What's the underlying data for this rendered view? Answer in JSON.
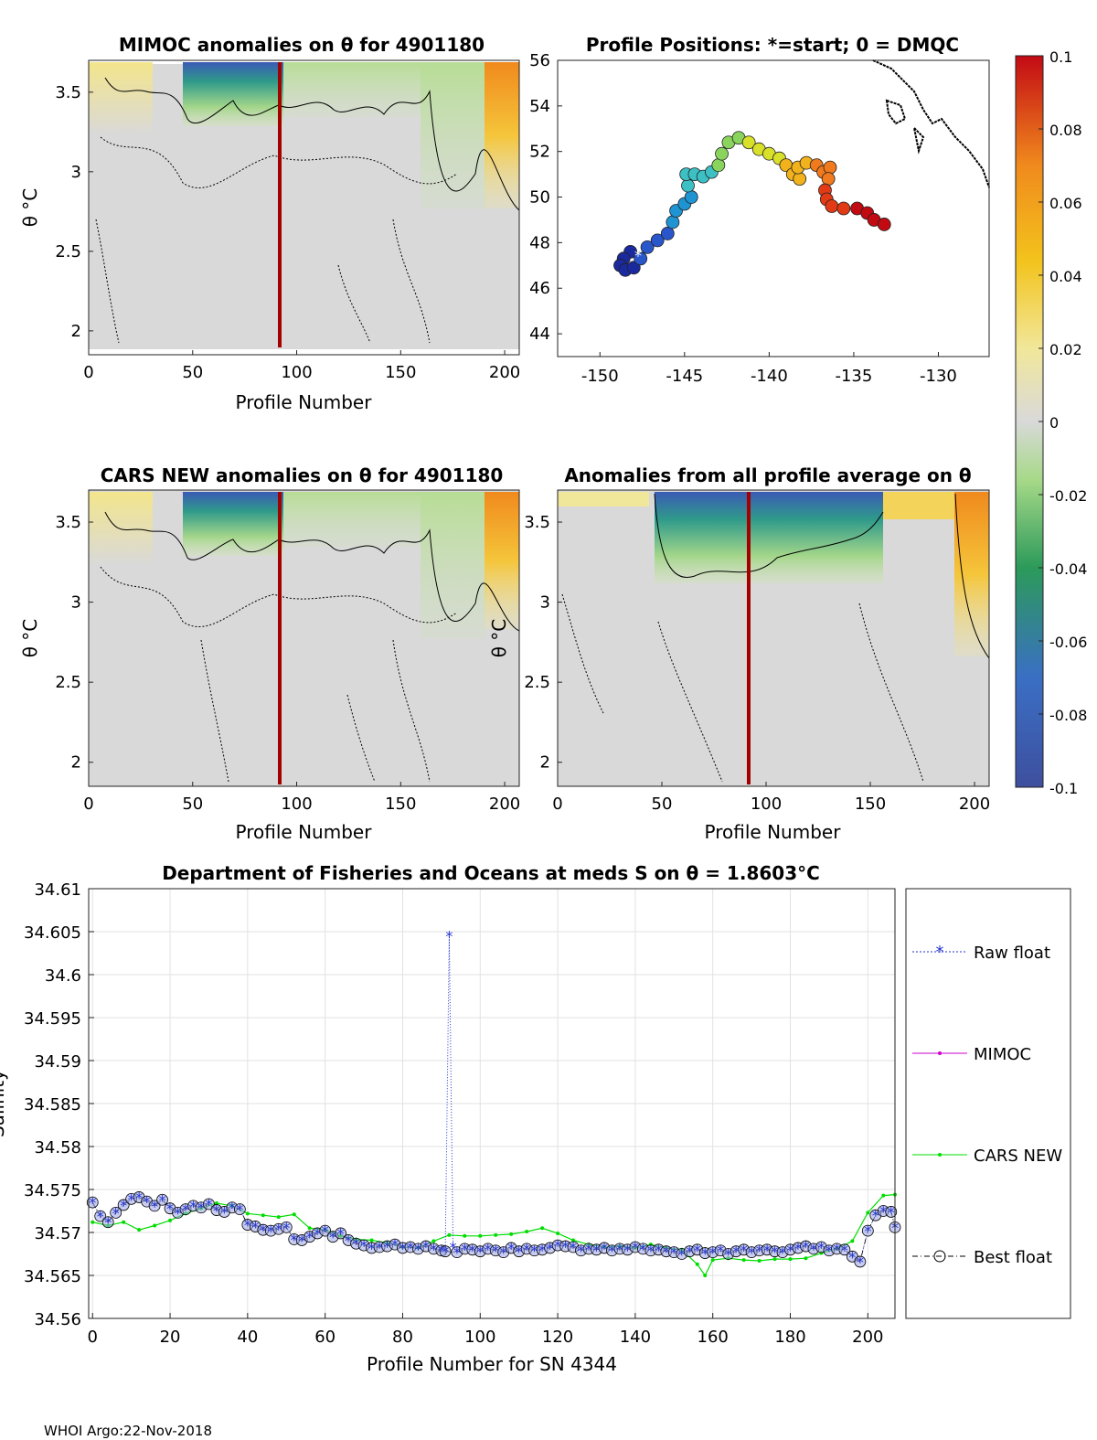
{
  "footer": "WHOI Argo:22-Nov-2018",
  "panels": {
    "mimoc": {
      "title": "MIMOC anomalies on θ  for 4901180",
      "xlabel": "Profile Number",
      "ylabel": "θ °C",
      "xlim": [
        0,
        207
      ],
      "ylim": [
        1.85,
        3.7
      ],
      "xticks": [
        "0",
        "50",
        "100",
        "150",
        "200"
      ],
      "yticks": [
        "2",
        "2.5",
        "3",
        "3.5"
      ]
    },
    "positions": {
      "title": "Profile Positions: *=start; 0 = DMQC",
      "xlim": [
        -152.5,
        -127
      ],
      "ylim": [
        43,
        56
      ],
      "xticks": [
        "-150",
        "-145",
        "-140",
        "-135",
        "-130"
      ],
      "yticks": [
        "44",
        "46",
        "48",
        "50",
        "52",
        "54",
        "56"
      ],
      "track": [
        [
          -148.2,
          47.6
        ],
        [
          -148.6,
          47.3
        ],
        [
          -148.8,
          47.0
        ],
        [
          -148.5,
          46.8
        ],
        [
          -148.0,
          46.9
        ],
        [
          -147.6,
          47.3
        ],
        [
          -147.2,
          47.8
        ],
        [
          -146.6,
          48.1
        ],
        [
          -146.0,
          48.4
        ],
        [
          -145.7,
          48.9
        ],
        [
          -145.5,
          49.4
        ],
        [
          -145.0,
          49.7
        ],
        [
          -144.6,
          50.0
        ],
        [
          -144.8,
          50.5
        ],
        [
          -144.9,
          51.0
        ],
        [
          -144.4,
          51.0
        ],
        [
          -143.9,
          50.9
        ],
        [
          -143.4,
          51.1
        ],
        [
          -143.0,
          51.4
        ],
        [
          -142.8,
          51.9
        ],
        [
          -142.4,
          52.4
        ],
        [
          -141.8,
          52.6
        ],
        [
          -141.2,
          52.4
        ],
        [
          -140.6,
          52.1
        ],
        [
          -140.0,
          51.9
        ],
        [
          -139.4,
          51.7
        ],
        [
          -139.0,
          51.4
        ],
        [
          -138.6,
          51.0
        ],
        [
          -138.2,
          50.8
        ],
        [
          -138.3,
          51.3
        ],
        [
          -137.8,
          51.5
        ],
        [
          -137.2,
          51.4
        ],
        [
          -136.8,
          51.1
        ],
        [
          -136.4,
          51.3
        ],
        [
          -136.5,
          50.8
        ],
        [
          -136.7,
          50.3
        ],
        [
          -136.6,
          49.9
        ],
        [
          -136.3,
          49.6
        ],
        [
          -135.6,
          49.5
        ],
        [
          -134.8,
          49.5
        ],
        [
          -134.2,
          49.3
        ],
        [
          -133.8,
          49.0
        ],
        [
          -133.2,
          48.8
        ]
      ]
    },
    "cars": {
      "title": "CARS NEW anomalies on θ for 4901180",
      "xlabel": "Profile Number",
      "ylabel": "θ °C",
      "xlim": [
        0,
        207
      ],
      "ylim": [
        1.85,
        3.7
      ],
      "xticks": [
        "0",
        "50",
        "100",
        "150",
        "200"
      ],
      "yticks": [
        "2",
        "2.5",
        "3",
        "3.5"
      ]
    },
    "avg": {
      "title": "Anomalies from all profile average on θ",
      "xlabel": "Profile Number",
      "ylabel": "θ °C",
      "xlim": [
        0,
        207
      ],
      "ylim": [
        1.85,
        3.7
      ],
      "xticks": [
        "0",
        "50",
        "100",
        "150",
        "200"
      ],
      "yticks": [
        "2",
        "2.5",
        "3",
        "3.5"
      ]
    }
  },
  "colorbar": {
    "min": -0.1,
    "max": 0.1,
    "ticks": [
      "0.1",
      "0.08",
      "0.06",
      "0.04",
      "0.02",
      "0",
      "-0.02",
      "-0.04",
      "-0.06",
      "-0.08",
      "-0.1"
    ]
  },
  "chart_data": {
    "type": "line",
    "title": "Department of Fisheries and Oceans at meds S on θ = 1.8603°C",
    "xlabel": "Profile Number for SN 4344",
    "ylabel": "Salinity",
    "xlim": [
      -1,
      207
    ],
    "ylim": [
      34.56,
      34.61
    ],
    "xticks": [
      "0",
      "20",
      "40",
      "60",
      "80",
      "100",
      "120",
      "140",
      "160",
      "180",
      "200"
    ],
    "yticks": [
      "34.56",
      "34.565",
      "34.57",
      "34.575",
      "34.58",
      "34.585",
      "34.59",
      "34.595",
      "34.6",
      "34.605",
      "34.61"
    ],
    "legend": [
      "Raw float",
      "MIMOC",
      "CARS NEW",
      "Best float"
    ],
    "series": [
      {
        "name": "Raw float",
        "x": [
          0,
          2,
          4,
          6,
          8,
          10,
          12,
          14,
          16,
          18,
          20,
          22,
          24,
          26,
          28,
          30,
          32,
          34,
          36,
          38,
          40,
          42,
          44,
          46,
          48,
          50,
          52,
          54,
          56,
          58,
          60,
          62,
          64,
          66,
          68,
          70,
          72,
          74,
          76,
          78,
          80,
          82,
          84,
          86,
          88,
          90,
          91,
          92,
          93,
          94,
          96,
          98,
          100,
          102,
          104,
          106,
          108,
          110,
          112,
          114,
          116,
          118,
          120,
          122,
          124,
          126,
          128,
          130,
          132,
          134,
          136,
          138,
          140,
          142,
          144,
          146,
          148,
          150,
          152,
          154,
          156,
          158,
          160,
          162,
          164,
          166,
          168,
          170,
          172,
          174,
          176,
          178,
          180,
          182,
          184,
          186,
          188,
          190,
          192,
          194,
          196,
          198,
          200,
          202,
          204,
          206,
          207
        ],
        "values": [
          34.5735,
          34.5719,
          34.5712,
          34.5723,
          34.5732,
          34.5739,
          34.5741,
          34.5736,
          34.5731,
          34.5738,
          34.5728,
          34.5723,
          34.5727,
          34.5731,
          34.5729,
          34.5733,
          34.5726,
          34.5724,
          34.5729,
          34.5727,
          34.5709,
          34.5707,
          34.5703,
          34.5702,
          34.5704,
          34.5706,
          34.5692,
          34.5691,
          34.5695,
          34.5699,
          34.5702,
          34.5695,
          34.5699,
          34.5691,
          34.5687,
          34.5685,
          34.5682,
          34.5683,
          34.5684,
          34.5686,
          34.5682,
          34.5683,
          34.5681,
          34.5684,
          34.5681,
          34.5679,
          34.5678,
          34.6045,
          34.5683,
          34.5677,
          34.5681,
          34.568,
          34.5678,
          34.5681,
          34.5679,
          34.5677,
          34.5682,
          34.5678,
          34.5681,
          34.5679,
          34.568,
          34.5682,
          34.5685,
          34.5684,
          34.5683,
          34.5679,
          34.5681,
          34.568,
          34.5682,
          34.5679,
          34.5681,
          34.568,
          34.5683,
          34.5681,
          34.5679,
          34.568,
          34.5678,
          34.5677,
          34.5675,
          34.5678,
          34.568,
          34.5676,
          34.5677,
          34.5679,
          34.5675,
          34.5678,
          34.568,
          34.5677,
          34.5679,
          34.568,
          34.5678,
          34.5677,
          34.568,
          34.5682,
          34.5684,
          34.5681,
          34.5683,
          34.5679,
          34.5681,
          34.568,
          34.5672,
          34.5666,
          34.5702,
          34.572,
          34.5725,
          34.5724,
          34.5706
        ]
      },
      {
        "name": "MIMOC",
        "x": [],
        "values": []
      },
      {
        "name": "CARS NEW",
        "x": [
          0,
          4,
          8,
          12,
          16,
          20,
          24,
          28,
          32,
          36,
          40,
          44,
          48,
          52,
          56,
          60,
          64,
          68,
          72,
          76,
          80,
          84,
          88,
          92,
          96,
          100,
          104,
          108,
          112,
          116,
          120,
          124,
          128,
          132,
          136,
          140,
          144,
          148,
          152,
          156,
          158,
          160,
          164,
          168,
          172,
          176,
          180,
          184,
          188,
          192,
          196,
          200,
          204,
          207
        ],
        "values": [
          34.5712,
          34.5708,
          34.5712,
          34.5703,
          34.5708,
          34.5714,
          34.5722,
          34.5728,
          34.5734,
          34.5731,
          34.5722,
          34.572,
          34.5718,
          34.5721,
          34.5705,
          34.5703,
          34.5696,
          34.5692,
          34.5691,
          34.5688,
          34.5683,
          34.5682,
          34.569,
          34.5697,
          34.5696,
          34.5696,
          34.5697,
          34.5698,
          34.5701,
          34.5705,
          34.5699,
          34.5691,
          34.5686,
          34.5683,
          34.5684,
          34.5682,
          34.5686,
          34.5682,
          34.568,
          34.5663,
          34.565,
          34.5668,
          34.567,
          34.5668,
          34.5667,
          34.5669,
          34.5669,
          34.567,
          34.5676,
          34.5681,
          34.569,
          34.5723,
          34.5743,
          34.5744
        ]
      },
      {
        "name": "Best float",
        "x": [
          0,
          2,
          4,
          6,
          8,
          10,
          12,
          14,
          16,
          18,
          20,
          22,
          24,
          26,
          28,
          30,
          32,
          34,
          36,
          38,
          40,
          42,
          44,
          46,
          48,
          50,
          52,
          54,
          56,
          58,
          60,
          62,
          64,
          66,
          68,
          70,
          72,
          74,
          76,
          78,
          80,
          82,
          84,
          86,
          88,
          90,
          91,
          94,
          96,
          98,
          100,
          102,
          104,
          106,
          108,
          110,
          112,
          114,
          116,
          118,
          120,
          122,
          124,
          126,
          128,
          130,
          132,
          134,
          136,
          138,
          140,
          142,
          144,
          146,
          148,
          150,
          152,
          154,
          156,
          158,
          160,
          162,
          164,
          166,
          168,
          170,
          172,
          174,
          176,
          178,
          180,
          182,
          184,
          186,
          188,
          190,
          192,
          194,
          196,
          198,
          200,
          202,
          204,
          206,
          207
        ],
        "values": [
          34.5735,
          34.5719,
          34.5712,
          34.5723,
          34.5732,
          34.5739,
          34.5741,
          34.5736,
          34.5731,
          34.5738,
          34.5728,
          34.5723,
          34.5727,
          34.5731,
          34.5729,
          34.5733,
          34.5726,
          34.5724,
          34.5729,
          34.5727,
          34.5709,
          34.5707,
          34.5703,
          34.5702,
          34.5704,
          34.5706,
          34.5692,
          34.5691,
          34.5695,
          34.5699,
          34.5702,
          34.5695,
          34.5699,
          34.5691,
          34.5687,
          34.5685,
          34.5682,
          34.5683,
          34.5684,
          34.5686,
          34.5682,
          34.5683,
          34.5681,
          34.5684,
          34.5681,
          34.5679,
          34.5678,
          34.5677,
          34.5681,
          34.568,
          34.5678,
          34.5681,
          34.5679,
          34.5677,
          34.5682,
          34.5678,
          34.5681,
          34.5679,
          34.568,
          34.5682,
          34.5685,
          34.5684,
          34.5683,
          34.5679,
          34.5681,
          34.568,
          34.5682,
          34.5679,
          34.5681,
          34.568,
          34.5683,
          34.5681,
          34.5679,
          34.568,
          34.5678,
          34.5677,
          34.5675,
          34.5678,
          34.568,
          34.5676,
          34.5677,
          34.5679,
          34.5675,
          34.5678,
          34.568,
          34.5677,
          34.5679,
          34.568,
          34.5678,
          34.5677,
          34.568,
          34.5682,
          34.5684,
          34.5681,
          34.5683,
          34.5679,
          34.5681,
          34.568,
          34.5672,
          34.5666,
          34.5702,
          34.572,
          34.5725,
          34.5724,
          34.5706
        ]
      }
    ]
  }
}
